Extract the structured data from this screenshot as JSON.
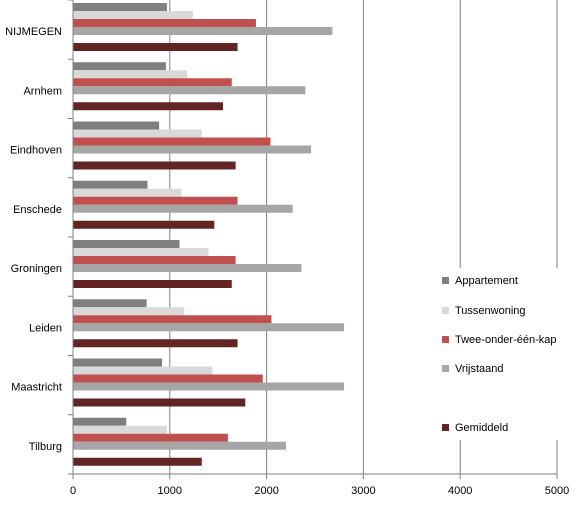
{
  "chart_data": {
    "type": "bar",
    "orientation": "horizontal",
    "categories": [
      "NIJMEGEN",
      "Arnhem",
      "Eindhoven",
      "Enschede",
      "Groningen",
      "Leiden",
      "Maastricht",
      "Tilburg"
    ],
    "series": [
      {
        "name": "Appartement",
        "color": "#7f7f7f",
        "values": [
          970,
          960,
          890,
          770,
          1100,
          760,
          920,
          550
        ]
      },
      {
        "name": "Tussenwoning",
        "color": "#d9d9d9",
        "values": [
          1240,
          1180,
          1330,
          1120,
          1400,
          1150,
          1440,
          970
        ]
      },
      {
        "name": "Twee-onder-één-kap",
        "color": "#c0504d",
        "values": [
          1890,
          1640,
          2040,
          1700,
          1680,
          2050,
          1960,
          1600
        ]
      },
      {
        "name": "Vrijstaand",
        "color": "#a6a6a6",
        "values": [
          2680,
          2400,
          2460,
          2270,
          2360,
          2800,
          2800,
          2200
        ]
      },
      {
        "name": "Gemiddeld",
        "color": "#632523",
        "values": [
          1700,
          1550,
          1680,
          1460,
          1640,
          1700,
          1780,
          1330
        ]
      }
    ],
    "x_ticks": [
      "0",
      "1000",
      "2000",
      "3000",
      "4000",
      "5000"
    ],
    "xlim": [
      0,
      5000
    ],
    "grid": "vertical major gridlines",
    "legend_position": "right",
    "title": "",
    "xlabel": "",
    "ylabel": ""
  }
}
